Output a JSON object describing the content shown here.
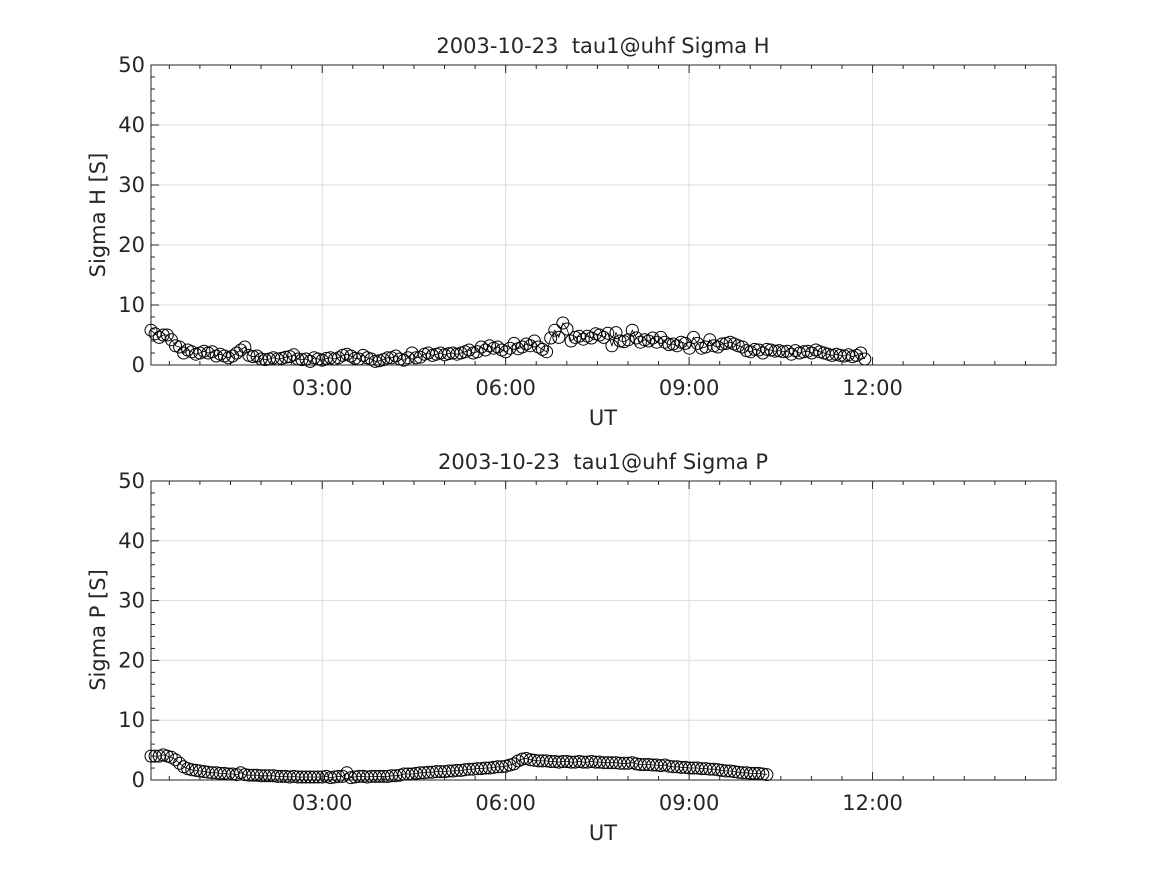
{
  "chart_data": [
    {
      "type": "scatter",
      "title": "2003-10-23  tau1@uhf Sigma H",
      "xlabel": "UT",
      "ylabel": "Sigma H [S]",
      "ylim": [
        0,
        50
      ],
      "xlim_hours": [
        0.2,
        15.0
      ],
      "x_unit": "hours UT",
      "yticks": [
        "0",
        "10",
        "20",
        "30",
        "40",
        "50"
      ],
      "xticks": [
        {
          "hour": 3,
          "label": "03:00"
        },
        {
          "hour": 6,
          "label": "06:00"
        },
        {
          "hour": 9,
          "label": "09:00"
        },
        {
          "hour": 12,
          "label": "12:00"
        }
      ],
      "grid": true,
      "marker": "open-circle",
      "series_color": "#000000",
      "x_start_hour": 0.2,
      "x_step_hours": 0.0667,
      "values": [
        5.8,
        5.2,
        4.6,
        5.0,
        5.0,
        4.2,
        3.2,
        3.0,
        2.0,
        2.5,
        2.2,
        1.8,
        2.0,
        2.3,
        2.0,
        2.2,
        1.5,
        1.8,
        1.5,
        1.2,
        1.5,
        2.0,
        2.5,
        3.0,
        1.6,
        1.4,
        1.5,
        1.0,
        0.9,
        1.0,
        1.2,
        1.0,
        1.1,
        1.3,
        1.4,
        1.7,
        1.0,
        0.9,
        1.0,
        0.6,
        1.2,
        1.0,
        0.8,
        1.1,
        1.2,
        1.0,
        1.2,
        1.6,
        1.8,
        1.5,
        1.1,
        1.0,
        1.6,
        1.2,
        1.0,
        0.6,
        0.7,
        0.9,
        1.2,
        1.2,
        1.5,
        1.0,
        0.8,
        1.2,
        2.0,
        1.2,
        1.3,
        1.8,
        2.0,
        1.6,
        1.8,
        2.0,
        1.7,
        1.9,
        2.0,
        1.8,
        2.0,
        2.2,
        2.5,
        2.0,
        2.2,
        3.0,
        2.5,
        3.2,
        2.8,
        3.0,
        2.5,
        2.2,
        2.8,
        3.6,
        2.7,
        3.0,
        3.5,
        3.2,
        4.0,
        3.0,
        2.6,
        2.2,
        4.5,
        5.8,
        4.6,
        7.0,
        6.0,
        4.0,
        4.6,
        4.8,
        4.3,
        4.8,
        4.5,
        5.2,
        5.0,
        4.6,
        5.3,
        3.2,
        5.4,
        4.0,
        3.9,
        4.2,
        5.8,
        4.5,
        3.8,
        4.2,
        4.0,
        4.5,
        3.8,
        4.6,
        3.8,
        3.4,
        3.5,
        3.2,
        3.8,
        3.6,
        2.8,
        4.6,
        3.6,
        2.8,
        3.0,
        4.2,
        3.2,
        3.0,
        3.5,
        3.6,
        3.8,
        3.5,
        3.2,
        3.0,
        2.4,
        2.2,
        2.6,
        2.5,
        2.0,
        2.6,
        2.5,
        2.3,
        2.4,
        2.2,
        2.3,
        1.8,
        2.4,
        2.0,
        2.2,
        2.3,
        2.0,
        2.5,
        2.2,
        2.0,
        1.8,
        1.6,
        1.8,
        1.6,
        1.5,
        1.7,
        1.4,
        1.6,
        2.0,
        1.0
      ]
    },
    {
      "type": "scatter",
      "title": "2003-10-23  tau1@uhf Sigma P",
      "xlabel": "UT",
      "ylabel": "Sigma P [S]",
      "ylim": [
        0,
        50
      ],
      "xlim_hours": [
        0.2,
        15.0
      ],
      "x_unit": "hours UT",
      "yticks": [
        "0",
        "10",
        "20",
        "30",
        "40",
        "50"
      ],
      "xticks": [
        {
          "hour": 3,
          "label": "03:00"
        },
        {
          "hour": 6,
          "label": "06:00"
        },
        {
          "hour": 9,
          "label": "09:00"
        },
        {
          "hour": 12,
          "label": "12:00"
        }
      ],
      "grid": true,
      "marker": "open-circle",
      "series_color": "#000000",
      "x_start_hour": 0.2,
      "x_step_hours": 0.0667,
      "values": [
        4.0,
        4.0,
        4.0,
        4.2,
        4.0,
        3.8,
        3.4,
        2.8,
        2.2,
        1.9,
        1.7,
        1.6,
        1.5,
        1.4,
        1.3,
        1.2,
        1.2,
        1.1,
        1.1,
        1.0,
        1.0,
        0.9,
        1.2,
        0.9,
        0.8,
        0.8,
        0.8,
        0.7,
        0.7,
        0.7,
        0.7,
        0.6,
        0.6,
        0.6,
        0.5,
        0.6,
        0.5,
        0.5,
        0.5,
        0.5,
        0.5,
        0.5,
        0.5,
        0.6,
        0.4,
        0.5,
        0.6,
        0.6,
        1.2,
        0.4,
        0.5,
        0.6,
        0.6,
        0.5,
        0.6,
        0.6,
        0.6,
        0.6,
        0.6,
        0.7,
        0.7,
        0.8,
        1.0,
        1.0,
        1.0,
        1.1,
        1.2,
        1.2,
        1.3,
        1.3,
        1.4,
        1.4,
        1.4,
        1.5,
        1.5,
        1.6,
        1.6,
        1.7,
        1.8,
        1.8,
        1.9,
        1.9,
        2.0,
        2.0,
        2.1,
        2.2,
        2.2,
        2.3,
        2.5,
        2.7,
        3.2,
        3.5,
        3.6,
        3.4,
        3.3,
        3.2,
        3.2,
        3.2,
        3.1,
        3.1,
        3.0,
        3.1,
        3.1,
        3.0,
        3.0,
        3.1,
        3.0,
        3.0,
        3.1,
        3.0,
        3.0,
        2.9,
        2.9,
        2.9,
        2.9,
        2.8,
        2.8,
        2.8,
        2.9,
        2.7,
        2.6,
        2.6,
        2.6,
        2.5,
        2.5,
        2.4,
        2.5,
        2.3,
        2.2,
        2.2,
        2.1,
        2.1,
        2.0,
        2.0,
        2.0,
        1.9,
        1.9,
        1.8,
        1.8,
        1.7,
        1.6,
        1.5,
        1.5,
        1.4,
        1.3,
        1.2,
        1.2,
        1.1,
        1.1,
        1.1,
        1.0,
        0.9
      ]
    }
  ]
}
